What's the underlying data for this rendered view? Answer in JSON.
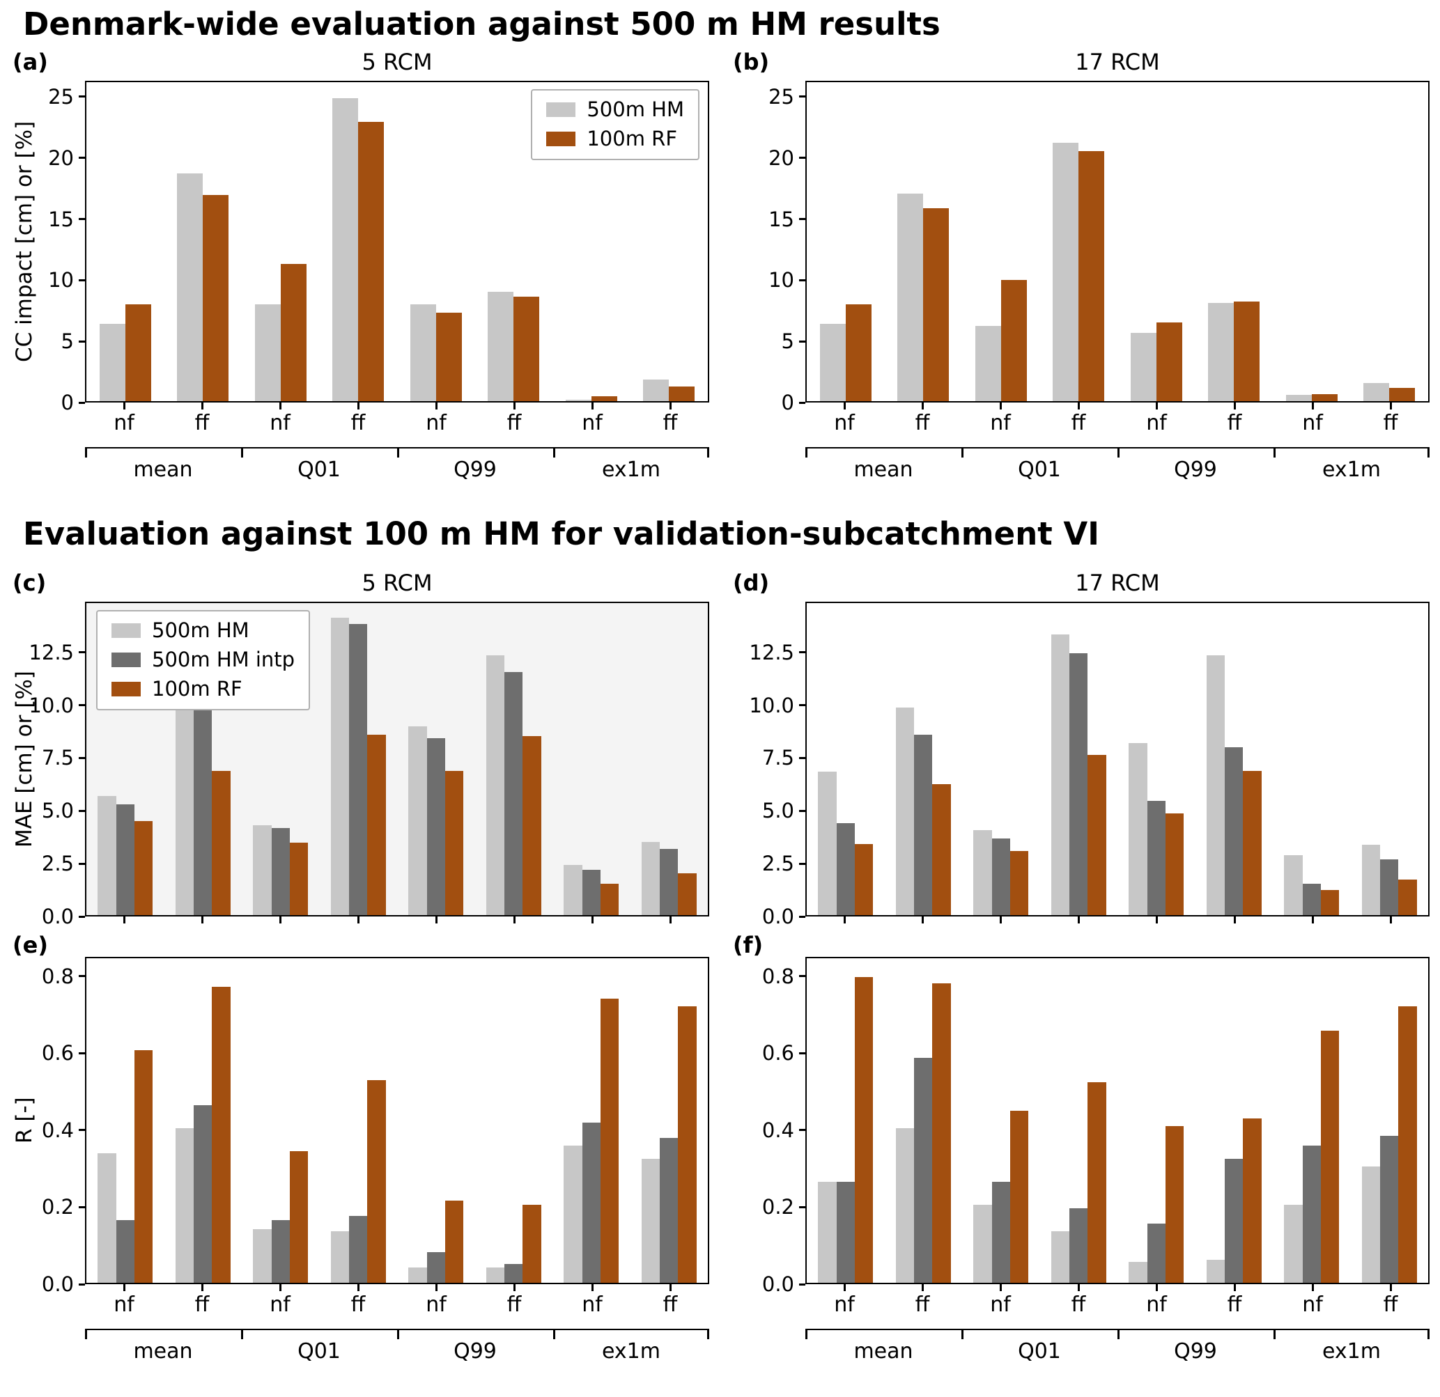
{
  "page": {
    "section1_title": "Denmark-wide evaluation against 500 m HM results",
    "section2_title": "Evaluation against 100 m HM for validation-subcatchment VI"
  },
  "colors": {
    "hm500": "#c7c7c7",
    "hm500intp": "#6e6e6e",
    "rf100": "#a24f10"
  },
  "categories": [
    "mean",
    "Q01",
    "Q99",
    "ex1m"
  ],
  "subgroup_labels": [
    "nf",
    "ff",
    "nf",
    "ff",
    "nf",
    "ff",
    "nf",
    "ff"
  ],
  "chart_data": [
    {
      "id": "a",
      "type": "bar",
      "panel_label": "(a)",
      "title": "5 RCM",
      "ylabel": "CC impact [cm] or [%]",
      "ylim": [
        0,
        26.3
      ],
      "yticks": [
        {
          "label": "0",
          "value": 0
        },
        {
          "label": "5",
          "value": 5
        },
        {
          "label": "10",
          "value": 10
        },
        {
          "label": "15",
          "value": 15
        },
        {
          "label": "20",
          "value": 20
        },
        {
          "label": "25",
          "value": 25
        }
      ],
      "legend_position": "top-right",
      "show_x_labels": true,
      "show_category_axis": true,
      "series": [
        {
          "key": "hm500",
          "name": "500m HM",
          "color_key": "hm500",
          "values": [
            6.4,
            18.8,
            8.0,
            25.0,
            8.0,
            9.0,
            0.1,
            1.8
          ]
        },
        {
          "key": "rf100",
          "name": "100m RF",
          "color_key": "rf100",
          "values": [
            8.0,
            17.0,
            11.3,
            23.0,
            7.3,
            8.6,
            0.4,
            1.2
          ]
        }
      ]
    },
    {
      "id": "b",
      "type": "bar",
      "panel_label": "(b)",
      "title": "17 RCM",
      "ylabel": "",
      "ylim": [
        0,
        26.3
      ],
      "yticks": [
        {
          "label": "0",
          "value": 0
        },
        {
          "label": "5",
          "value": 5
        },
        {
          "label": "10",
          "value": 10
        },
        {
          "label": "15",
          "value": 15
        },
        {
          "label": "20",
          "value": 20
        },
        {
          "label": "25",
          "value": 25
        }
      ],
      "legend_position": null,
      "show_x_labels": true,
      "show_category_axis": true,
      "series": [
        {
          "key": "hm500",
          "name": "500m HM",
          "color_key": "hm500",
          "values": [
            6.4,
            17.1,
            6.2,
            21.3,
            5.6,
            8.1,
            0.5,
            1.5
          ]
        },
        {
          "key": "rf100",
          "name": "100m RF",
          "color_key": "rf100",
          "values": [
            8.0,
            15.9,
            10.0,
            20.6,
            6.5,
            8.2,
            0.6,
            1.1
          ]
        }
      ]
    },
    {
      "id": "c",
      "type": "bar",
      "panel_label": "(c)",
      "title": "5 RCM",
      "ylabel": "MAE [cm] or [%]",
      "ylim": [
        0,
        14.9
      ],
      "plot_bg": "#f4f4f4",
      "yticks": [
        {
          "label": "0.0",
          "value": 0
        },
        {
          "label": "2.5",
          "value": 2.5
        },
        {
          "label": "5.0",
          "value": 5.0
        },
        {
          "label": "7.5",
          "value": 7.5
        },
        {
          "label": "10.0",
          "value": 10.0
        },
        {
          "label": "12.5",
          "value": 12.5
        }
      ],
      "legend_position": "top-left",
      "show_x_labels": false,
      "show_category_axis": false,
      "series": [
        {
          "key": "hm500",
          "name": "500m HM",
          "color_key": "hm500",
          "values": [
            5.7,
            10.1,
            4.3,
            14.2,
            9.0,
            12.4,
            2.4,
            3.5
          ]
        },
        {
          "key": "hm500intp",
          "name": "500m HM intp",
          "color_key": "hm500intp",
          "values": [
            5.3,
            9.9,
            4.15,
            13.9,
            8.45,
            11.6,
            2.15,
            3.15
          ]
        },
        {
          "key": "rf100",
          "name": "100m RF",
          "color_key": "rf100",
          "values": [
            4.5,
            6.9,
            3.45,
            8.6,
            6.9,
            8.55,
            1.5,
            2.0
          ]
        }
      ]
    },
    {
      "id": "d",
      "type": "bar",
      "panel_label": "(d)",
      "title": "17 RCM",
      "ylabel": "",
      "ylim": [
        0,
        14.9
      ],
      "yticks": [
        {
          "label": "0.0",
          "value": 0
        },
        {
          "label": "2.5",
          "value": 2.5
        },
        {
          "label": "5.0",
          "value": 5.0
        },
        {
          "label": "7.5",
          "value": 7.5
        },
        {
          "label": "10.0",
          "value": 10.0
        },
        {
          "label": "12.5",
          "value": 12.5
        }
      ],
      "legend_position": null,
      "show_x_labels": false,
      "show_category_axis": false,
      "series": [
        {
          "key": "hm500",
          "name": "500m HM",
          "color_key": "hm500",
          "values": [
            6.85,
            9.9,
            4.05,
            13.4,
            8.2,
            12.4,
            2.85,
            3.35
          ]
        },
        {
          "key": "hm500intp",
          "name": "500m HM intp",
          "color_key": "hm500intp",
          "values": [
            4.4,
            8.6,
            3.65,
            12.5,
            5.45,
            8.0,
            1.5,
            2.65
          ]
        },
        {
          "key": "rf100",
          "name": "100m RF",
          "color_key": "rf100",
          "values": [
            3.4,
            6.25,
            3.05,
            7.65,
            4.85,
            6.9,
            1.2,
            1.7
          ]
        }
      ]
    },
    {
      "id": "e",
      "type": "bar",
      "panel_label": "(e)",
      "title": "",
      "ylabel": "R [-]",
      "ylim": [
        0,
        0.85
      ],
      "yticks": [
        {
          "label": "0.0",
          "value": 0
        },
        {
          "label": "0.2",
          "value": 0.2
        },
        {
          "label": "0.4",
          "value": 0.4
        },
        {
          "label": "0.6",
          "value": 0.6
        },
        {
          "label": "0.8",
          "value": 0.8
        }
      ],
      "legend_position": null,
      "show_x_labels": true,
      "show_category_axis": true,
      "series": [
        {
          "key": "hm500",
          "name": "500m HM",
          "color_key": "hm500",
          "values": [
            0.34,
            0.405,
            0.14,
            0.135,
            0.04,
            0.04,
            0.36,
            0.325
          ]
        },
        {
          "key": "hm500intp",
          "name": "500m HM intp",
          "color_key": "hm500intp",
          "values": [
            0.165,
            0.465,
            0.165,
            0.175,
            0.08,
            0.05,
            0.42,
            0.38
          ]
        },
        {
          "key": "rf100",
          "name": "100m RF",
          "color_key": "rf100",
          "values": [
            0.61,
            0.775,
            0.345,
            0.53,
            0.215,
            0.205,
            0.745,
            0.725
          ]
        }
      ]
    },
    {
      "id": "f",
      "type": "bar",
      "panel_label": "(f)",
      "title": "",
      "ylabel": "",
      "ylim": [
        0,
        0.85
      ],
      "yticks": [
        {
          "label": "0.0",
          "value": 0
        },
        {
          "label": "0.2",
          "value": 0.2
        },
        {
          "label": "0.4",
          "value": 0.4
        },
        {
          "label": "0.6",
          "value": 0.6
        },
        {
          "label": "0.8",
          "value": 0.8
        }
      ],
      "legend_position": null,
      "show_x_labels": true,
      "show_category_axis": true,
      "series": [
        {
          "key": "hm500",
          "name": "500m HM",
          "color_key": "hm500",
          "values": [
            0.265,
            0.405,
            0.205,
            0.135,
            0.055,
            0.06,
            0.205,
            0.305
          ]
        },
        {
          "key": "hm500intp",
          "name": "500m HM intp",
          "color_key": "hm500intp",
          "values": [
            0.265,
            0.59,
            0.265,
            0.195,
            0.155,
            0.325,
            0.36,
            0.385
          ]
        },
        {
          "key": "rf100",
          "name": "100m RF",
          "color_key": "rf100",
          "values": [
            0.8,
            0.785,
            0.45,
            0.525,
            0.41,
            0.43,
            0.66,
            0.725
          ]
        }
      ]
    }
  ]
}
